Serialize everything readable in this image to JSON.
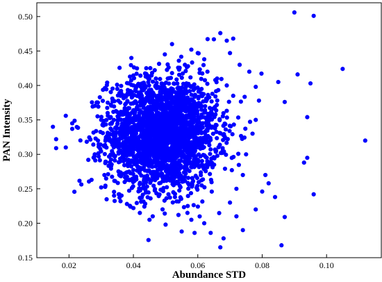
{
  "chart_data": {
    "type": "scatter",
    "title": "",
    "xlabel": "Abundance STD",
    "ylabel": "PAN Intensity",
    "xlim": [
      0.01,
      0.117
    ],
    "ylim": [
      0.15,
      0.52
    ],
    "xticks": [
      0.02,
      0.04,
      0.06,
      0.08,
      0.1
    ],
    "xtick_labels": [
      "0.02",
      "0.04",
      "0.06",
      "0.08",
      "0.10"
    ],
    "yticks": [
      0.15,
      0.2,
      0.25,
      0.3,
      0.35,
      0.4,
      0.45,
      0.5
    ],
    "ytick_labels": [
      "0.15",
      "0.20",
      "0.25",
      "0.30",
      "0.35",
      "0.40",
      "0.45",
      "0.50"
    ],
    "grid": false,
    "legend": "none",
    "marker_color": "#0000ff",
    "series": [
      {
        "points": [
          [
            0.09,
            0.506
          ],
          [
            0.096,
            0.501
          ],
          [
            0.105,
            0.424
          ],
          [
            0.091,
            0.416
          ],
          [
            0.085,
            0.405
          ],
          [
            0.095,
            0.403
          ],
          [
            0.094,
            0.354
          ],
          [
            0.087,
            0.376
          ],
          [
            0.112,
            0.32
          ],
          [
            0.094,
            0.295
          ],
          [
            0.093,
            0.288
          ],
          [
            0.096,
            0.242
          ],
          [
            0.086,
            0.168
          ],
          [
            0.087,
            0.209
          ],
          [
            0.084,
            0.238
          ],
          [
            0.082,
            0.258
          ],
          [
            0.067,
            0.476
          ],
          [
            0.065,
            0.467
          ],
          [
            0.069,
            0.465
          ],
          [
            0.071,
            0.468
          ],
          [
            0.068,
            0.178
          ],
          [
            0.067,
            0.165
          ],
          [
            0.064,
            0.186
          ],
          [
            0.074,
            0.19
          ],
          [
            0.015,
            0.34
          ],
          [
            0.016,
            0.322
          ],
          [
            0.016,
            0.309
          ],
          [
            0.019,
            0.31
          ],
          [
            0.021,
            0.337
          ],
          [
            0.021,
            0.345
          ],
          [
            0.019,
            0.356
          ],
          [
            0.041,
            0.417
          ],
          [
            0.044,
            0.425
          ],
          [
            0.058,
            0.452
          ],
          [
            0.06,
            0.447
          ],
          [
            0.062,
            0.438
          ],
          [
            0.052,
            0.46
          ],
          [
            0.032,
            0.36
          ],
          [
            0.035,
            0.395
          ],
          [
            0.026,
            0.292
          ],
          [
            0.027,
            0.263
          ],
          [
            0.03,
            0.252
          ],
          [
            0.036,
            0.232
          ],
          [
            0.04,
            0.222
          ],
          [
            0.045,
            0.205
          ],
          [
            0.05,
            0.198
          ],
          [
            0.055,
            0.188
          ],
          [
            0.059,
            0.186
          ],
          [
            0.078,
            0.22
          ],
          [
            0.08,
            0.246
          ],
          [
            0.081,
            0.27
          ],
          [
            0.079,
            0.378
          ],
          [
            0.078,
            0.398
          ],
          [
            0.076,
            0.42
          ],
          [
            0.073,
            0.43
          ],
          [
            0.07,
            0.447
          ],
          [
            0.075,
            0.3
          ],
          [
            0.077,
            0.33
          ],
          [
            0.078,
            0.35
          ],
          [
            0.074,
            0.27
          ],
          [
            0.072,
            0.25
          ],
          [
            0.07,
            0.23
          ],
          [
            0.072,
            0.21
          ],
          [
            0.062,
            0.2
          ],
          [
            0.058,
            0.205
          ],
          [
            0.054,
            0.212
          ],
          [
            0.046,
            0.21
          ],
          [
            0.042,
            0.215
          ],
          [
            0.038,
            0.228
          ],
          [
            0.034,
            0.24
          ],
          [
            0.031,
            0.27
          ],
          [
            0.028,
            0.3
          ],
          [
            0.029,
            0.32
          ],
          [
            0.03,
            0.35
          ],
          [
            0.033,
            0.372
          ],
          [
            0.036,
            0.385
          ],
          [
            0.04,
            0.4
          ],
          [
            0.047,
            0.41
          ],
          [
            0.052,
            0.418
          ],
          [
            0.056,
            0.43
          ],
          [
            0.063,
            0.42
          ],
          [
            0.066,
            0.41
          ],
          [
            0.069,
            0.4
          ],
          [
            0.071,
            0.385
          ]
        ]
      }
    ]
  }
}
